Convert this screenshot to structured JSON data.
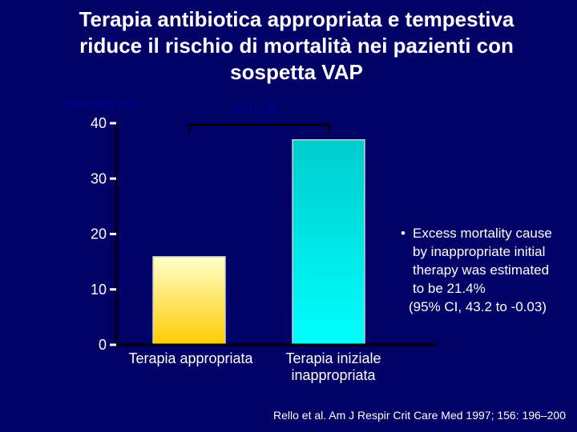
{
  "slide": {
    "title_lines": [
      "Terapia antibiotica appropriata e tempestiva",
      "riduce il rischio di mortalità nei pazienti con",
      "sospetta VAP"
    ],
    "note_bullet": "•",
    "note_lines": [
      "Excess mortality cause",
      "by inappropriate initial",
      "therapy was estimated",
      "to be 21.4%",
      "(95% CI, 43.2 to -0.03)"
    ],
    "citation": "Rello et al. Am J Respir Crit Care Med 1997; 156: 196–200"
  },
  "colors": {
    "background": "#000066",
    "axis": "#000000",
    "text": "#ffffff",
    "ylabel": "#000099",
    "bar1_top": "#ffffcc",
    "bar1_bottom": "#ffcc00",
    "bar2_top": "#00cccc",
    "bar2_bottom": "#00ffff"
  },
  "chart_data": {
    "type": "bar",
    "categories": [
      [
        "Terapia appropriata"
      ],
      [
        "Terapia iniziale",
        "inappropriata"
      ]
    ],
    "values": [
      15.9,
      37.0
    ],
    "ylabel": "Mortality (%)",
    "ylim": [
      0,
      40
    ],
    "yticks": [
      0,
      10,
      20,
      30,
      40
    ],
    "annotation": "p<0.06",
    "grid": false,
    "legend": "none"
  }
}
